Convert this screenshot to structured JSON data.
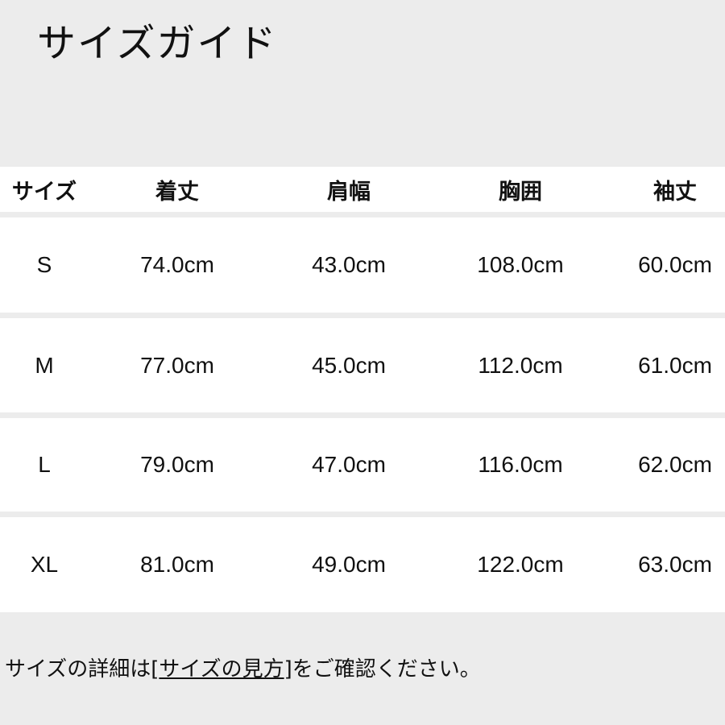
{
  "title": "サイズガイド",
  "table": {
    "headers": [
      "サイズ",
      "着丈",
      "肩幅",
      "胸囲",
      "袖丈"
    ],
    "rows": [
      [
        "S",
        "74.0cm",
        "43.0cm",
        "108.0cm",
        "60.0cm"
      ],
      [
        "M",
        "77.0cm",
        "45.0cm",
        "112.0cm",
        "61.0cm"
      ],
      [
        "L",
        "79.0cm",
        "47.0cm",
        "116.0cm",
        "62.0cm"
      ],
      [
        "XL",
        "81.0cm",
        "49.0cm",
        "122.0cm",
        "63.0cm"
      ]
    ]
  },
  "note": {
    "prefix": "サイズの詳細は[",
    "link": "サイズの見方",
    "suffix": "]をご確認ください。"
  }
}
